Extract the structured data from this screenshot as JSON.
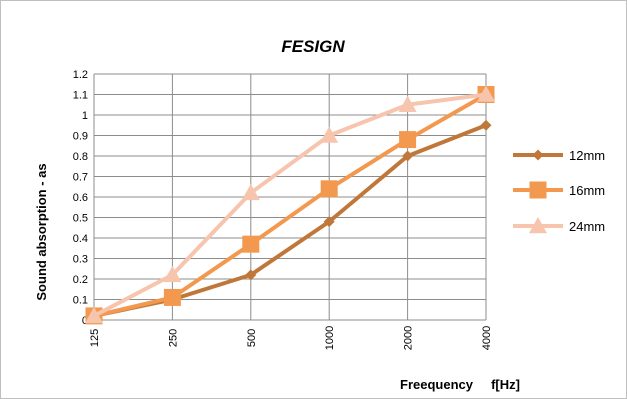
{
  "chart_data": {
    "type": "line",
    "title": "FESIGN",
    "xlabel": "Freequency     f[Hz]",
    "ylabel": "Sound absorption   - as",
    "categories": [
      "125",
      "250",
      "500",
      "1000",
      "2000",
      "4000"
    ],
    "ylim": [
      0,
      1.2
    ],
    "yticks": [
      "0",
      "0.1",
      "0.2",
      "0.3",
      "0.4",
      "0.5",
      "0.6",
      "0.7",
      "0.8",
      "0.9",
      "1",
      "1.1",
      "1.2"
    ],
    "grid": true,
    "legend_position": "right",
    "series": [
      {
        "name": "12mm",
        "marker": "diamond",
        "color": "#c0783a",
        "values": [
          0.02,
          0.1,
          0.22,
          0.48,
          0.8,
          0.95
        ]
      },
      {
        "name": "16mm",
        "marker": "square",
        "color": "#f3994f",
        "values": [
          0.02,
          0.11,
          0.37,
          0.64,
          0.88,
          1.1
        ]
      },
      {
        "name": "24mm",
        "marker": "triangle",
        "color": "#f7c4ad",
        "values": [
          0.02,
          0.22,
          0.62,
          0.9,
          1.05,
          1.1
        ]
      }
    ]
  }
}
